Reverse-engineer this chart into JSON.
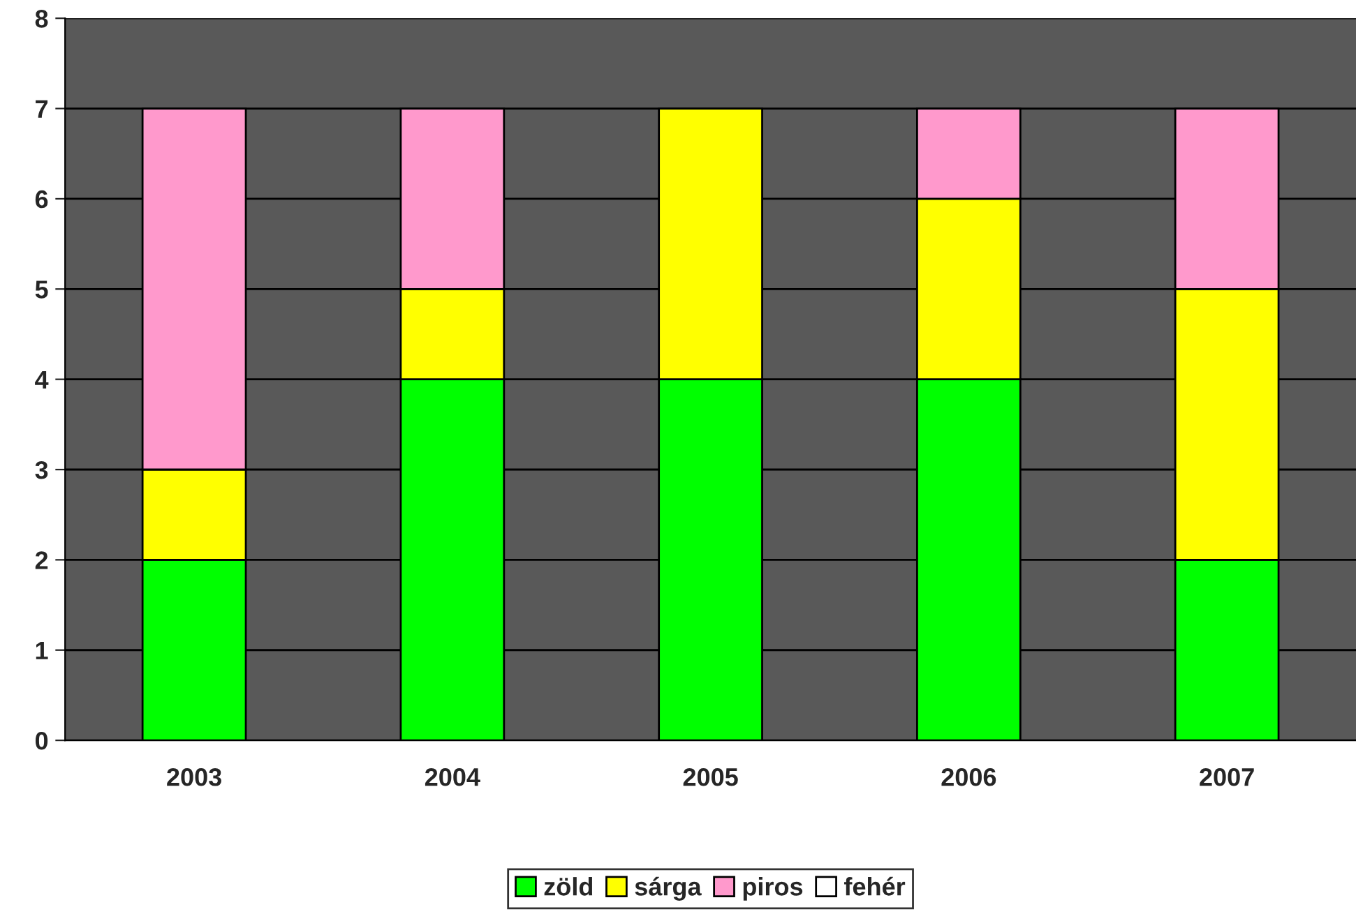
{
  "chart_data": {
    "type": "bar",
    "stacked": true,
    "categories": [
      "2003",
      "2004",
      "2005",
      "2006",
      "2007"
    ],
    "series": [
      {
        "name": "zöld",
        "color": "#00ff00",
        "values": [
          2,
          4,
          4,
          4,
          2
        ]
      },
      {
        "name": "sárga",
        "color": "#ffff00",
        "values": [
          1,
          1,
          3,
          2,
          3
        ]
      },
      {
        "name": "piros",
        "color": "#ff99cc",
        "values": [
          4,
          2,
          0,
          1,
          2
        ]
      },
      {
        "name": "fehér",
        "color": "#ffffff",
        "values": [
          0,
          0,
          0,
          0,
          0
        ]
      }
    ],
    "ylim": [
      0,
      8
    ],
    "yticks": [
      0,
      1,
      2,
      3,
      4,
      5,
      6,
      7,
      8
    ],
    "grid": "y",
    "legend": "bottom"
  }
}
